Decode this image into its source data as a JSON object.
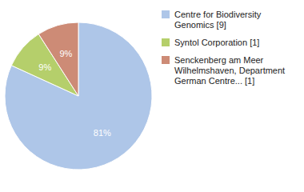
{
  "chart_data": {
    "type": "pie",
    "categories": [
      "Centre for Biodiversity\nGenomics [9]",
      "Syntol Corporation [1]",
      "Senckenberg am Meer\nWilhelmshaven, Department\nGerman Centre... [1]"
    ],
    "values": [
      81,
      9,
      9
    ],
    "value_labels": [
      "81%",
      "9%",
      "9%"
    ],
    "colors": [
      "#aec6e8",
      "#b5cf6b",
      "#cd8b76"
    ],
    "data_labels": true,
    "legend": "right"
  }
}
